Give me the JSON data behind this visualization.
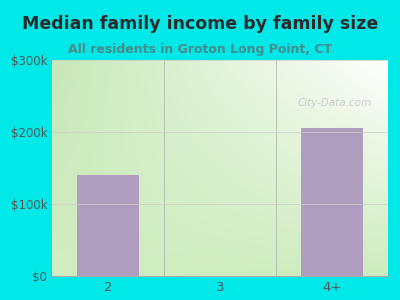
{
  "title": "Median family income by family size",
  "subtitle": "All residents in Groton Long Point, CT",
  "categories": [
    "2",
    "3",
    "4+"
  ],
  "values": [
    140000,
    0,
    205000
  ],
  "bar_color": "#b09ec0",
  "outer_bg": "#00e8e8",
  "plot_bg_top_left": "#d8eed0",
  "plot_bg_top_right": "#ffffff",
  "plot_bg_bottom": "#d0ecc8",
  "title_color": "#2a2a2a",
  "subtitle_color": "#4a8a8a",
  "tick_color": "#555555",
  "ylim": [
    0,
    300000
  ],
  "yticks": [
    0,
    100000,
    200000,
    300000
  ],
  "ytick_labels": [
    "$0",
    "$100k",
    "$200k",
    "$300k"
  ],
  "watermark": "City-Data.com",
  "watermark_color": "#c0c8c8",
  "title_fontsize": 12.5,
  "subtitle_fontsize": 9.0,
  "tick_fontsize": 8.5
}
